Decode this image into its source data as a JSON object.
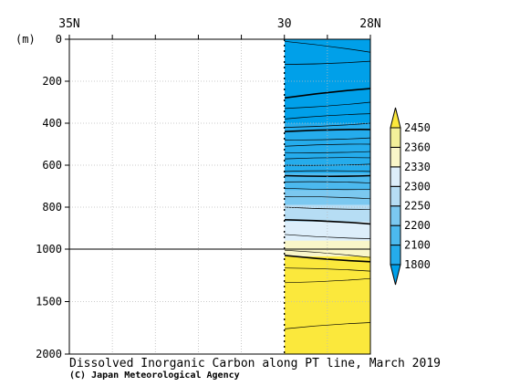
{
  "chart_data": {
    "type": "heatmap",
    "title": "Dissolved Inorganic Carbon along PT line, March 2019",
    "credit": "(C) Japan Meteorological Agency",
    "y_unit": "(m)",
    "x_ticks": [
      {
        "value": 35,
        "label": "35N"
      },
      {
        "value": 30,
        "label": "30"
      },
      {
        "value": 28,
        "label": "28N"
      }
    ],
    "xlim": [
      35,
      28
    ],
    "y_ticks": [
      0,
      200,
      400,
      600,
      800,
      1000,
      1500,
      2000
    ],
    "y_tick_labels": [
      "0",
      "200",
      "400",
      "600",
      "800",
      "1000",
      "1500",
      "2000"
    ],
    "ylim": [
      0,
      2000
    ],
    "y_break": 1000,
    "data_extent_lat": [
      30,
      28
    ],
    "colorbar": {
      "levels": [
        1800,
        2100,
        2200,
        2250,
        2300,
        2330,
        2360,
        2450
      ],
      "labels": [
        "1800",
        "2100",
        "2200",
        "2250",
        "2300",
        "2330",
        "2360",
        "2450"
      ],
      "colors": [
        "#00a0e9",
        "#25acec",
        "#4cb9ee",
        "#7bc8f0",
        "#b6ddf4",
        "#ddeefa",
        "#f9f6c9",
        "#f3f09a",
        "#fbe83c"
      ]
    },
    "bands": [
      {
        "min_depth": 0,
        "max_depth": 400,
        "range": "<2100",
        "color": "#00a0e9"
      },
      {
        "min_depth": 400,
        "max_depth": 640,
        "range": "2100-2200",
        "color": "#25acec"
      },
      {
        "min_depth": 640,
        "max_depth": 720,
        "range": "2200-2250",
        "color": "#4cb9ee"
      },
      {
        "min_depth": 720,
        "max_depth": 790,
        "range": "2250-2300",
        "color": "#7bc8f0"
      },
      {
        "min_depth": 790,
        "max_depth": 870,
        "range": "2300-2330",
        "color": "#b6ddf4"
      },
      {
        "min_depth": 870,
        "max_depth": 960,
        "range": "2330-2360",
        "color": "#ddeefa"
      },
      {
        "min_depth": 960,
        "max_depth": 1070,
        "range": "2360-2450",
        "color": "#f9f6c9"
      },
      {
        "min_depth": 1070,
        "max_depth": 2000,
        "range": ">2450",
        "color": "#fbe83c"
      }
    ],
    "contours": [
      {
        "depth_north": 10,
        "depth_south": 62,
        "bold": false
      },
      {
        "depth_north": 120,
        "depth_south": 105,
        "bold": false
      },
      {
        "depth_north": 280,
        "depth_south": 235,
        "bold": true
      },
      {
        "depth_north": 330,
        "depth_south": 300,
        "bold": false
      },
      {
        "depth_north": 380,
        "depth_south": 355,
        "bold": false
      },
      {
        "depth_north": 420,
        "depth_south": 400,
        "bold": false
      },
      {
        "depth_north": 440,
        "depth_south": 430,
        "bold": true
      },
      {
        "depth_north": 480,
        "depth_south": 470,
        "bold": false
      },
      {
        "depth_north": 510,
        "depth_south": 500,
        "bold": false
      },
      {
        "depth_north": 540,
        "depth_south": 535,
        "bold": false
      },
      {
        "depth_north": 570,
        "depth_south": 565,
        "bold": false
      },
      {
        "depth_north": 600,
        "depth_south": 595,
        "bold": false
      },
      {
        "depth_north": 630,
        "depth_south": 630,
        "bold": false
      },
      {
        "depth_north": 650,
        "depth_south": 650,
        "bold": true
      },
      {
        "depth_north": 680,
        "depth_south": 685,
        "bold": false
      },
      {
        "depth_north": 710,
        "depth_south": 715,
        "bold": false
      },
      {
        "depth_north": 750,
        "depth_south": 760,
        "bold": false
      },
      {
        "depth_north": 800,
        "depth_south": 810,
        "bold": false
      },
      {
        "depth_north": 860,
        "depth_south": 880,
        "bold": true
      },
      {
        "depth_north": 930,
        "depth_south": 950,
        "bold": false
      },
      {
        "depth_north": 1010,
        "depth_south": 1080,
        "bold": false
      },
      {
        "depth_north": 1060,
        "depth_south": 1120,
        "bold": true
      },
      {
        "depth_north": 1180,
        "depth_south": 1210,
        "bold": false
      },
      {
        "depth_north": 1320,
        "depth_south": 1280,
        "bold": false
      },
      {
        "depth_north": 1760,
        "depth_south": 1700,
        "bold": false
      }
    ],
    "grid": true
  }
}
